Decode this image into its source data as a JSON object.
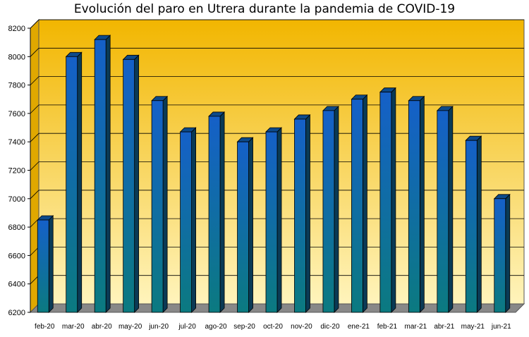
{
  "chart_data": {
    "type": "bar",
    "title": "Evolución del paro en Utrera durante la pandemia de COVID-19",
    "xlabel": "",
    "ylabel": "",
    "ylim": [
      6200,
      8200
    ],
    "yticks": [
      6200,
      6400,
      6600,
      6800,
      7000,
      7200,
      7400,
      7600,
      7800,
      8000,
      8200
    ],
    "grid": true,
    "legend": "none",
    "categories": [
      "feb-20",
      "mar-20",
      "abr-20",
      "may-20",
      "jun-20",
      "jul-20",
      "ago-20",
      "sep-20",
      "oct-20",
      "nov-20",
      "dic-20",
      "ene-21",
      "feb-21",
      "mar-21",
      "abr-21",
      "may-21",
      "jun-21"
    ],
    "values": [
      6850,
      8000,
      8120,
      7980,
      7690,
      7470,
      7580,
      7400,
      7470,
      7560,
      7620,
      7700,
      7750,
      7690,
      7620,
      7410,
      7000
    ],
    "colors": {
      "bar_top": "#1560c8",
      "bar_bottom": "#0b7a80",
      "background_top": "#f2b600",
      "background_bottom": "#fff4bc",
      "floor": "#888888"
    }
  }
}
